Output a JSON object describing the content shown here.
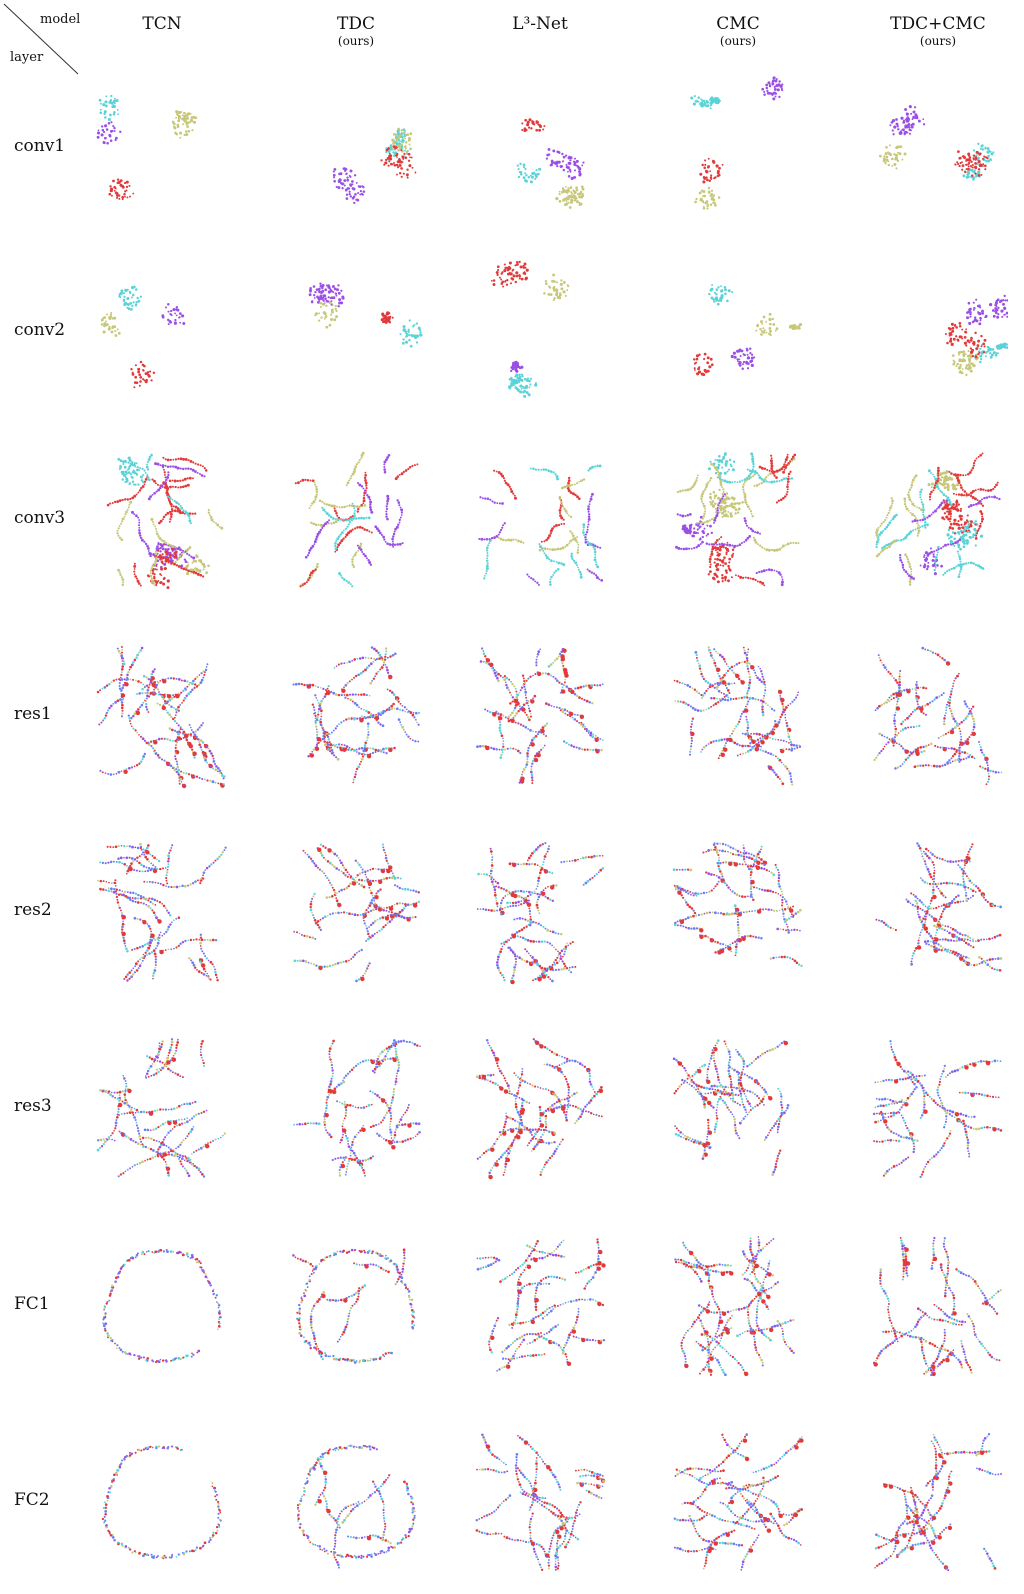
{
  "corner": {
    "model_label": "model",
    "layer_label": "layer"
  },
  "columns": [
    {
      "title": "TCN",
      "subtitle": ""
    },
    {
      "title": "TDC",
      "subtitle": "(ours)"
    },
    {
      "title": "L³-Net",
      "subtitle": ""
    },
    {
      "title": "CMC",
      "subtitle": "(ours)"
    },
    {
      "title": "TDC+CMC",
      "subtitle": "(ours)"
    }
  ],
  "rows": [
    "conv1",
    "conv2",
    "conv3",
    "res1",
    "res2",
    "res3",
    "FC1",
    "FC2"
  ],
  "colors": {
    "cyan": "#5ad3d8",
    "purple": "#9a4fe6",
    "olive": "#c7c77a",
    "red": "#e23a3a",
    "blue": "#6d7ff0"
  }
}
